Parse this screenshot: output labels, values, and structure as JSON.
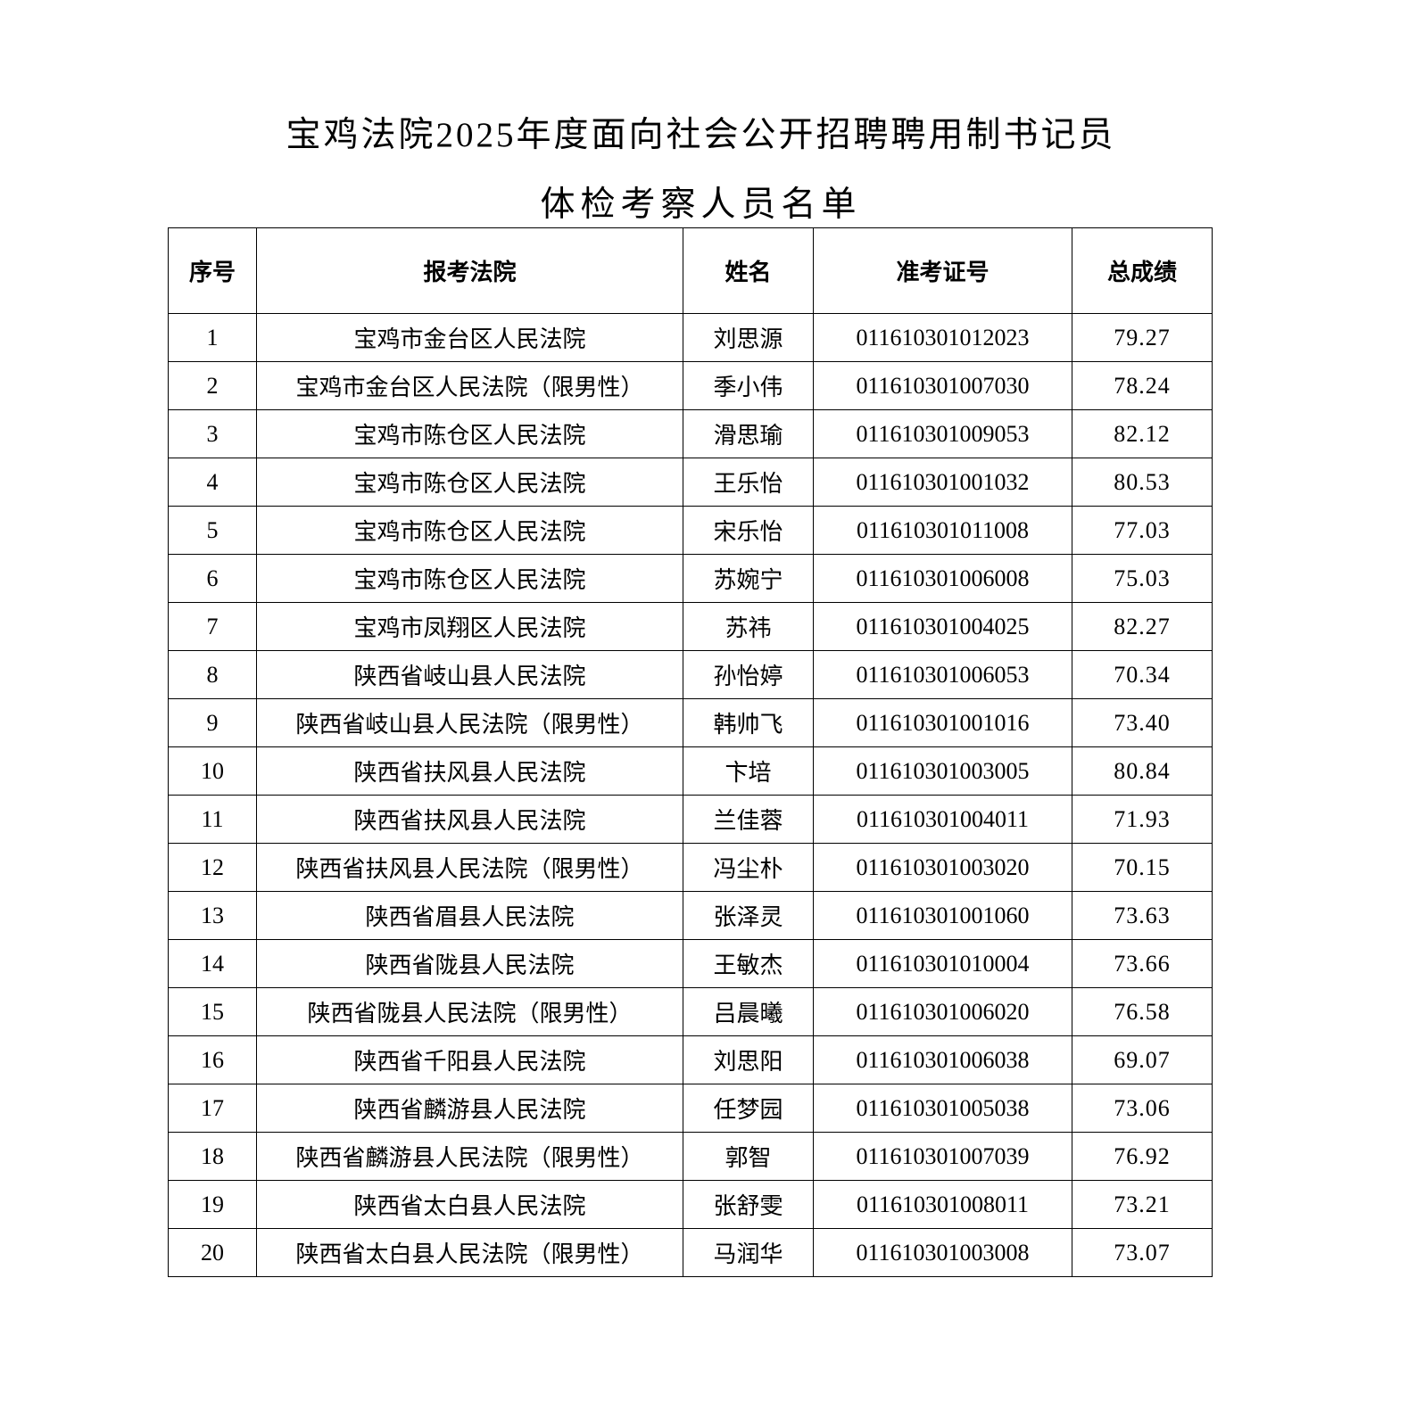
{
  "document": {
    "title_line1": "宝鸡法院2025年度面向社会公开招聘聘用制书记员",
    "title_line2": "体检考察人员名单"
  },
  "table": {
    "headers": [
      "序号",
      "报考法院",
      "姓名",
      "准考证号",
      "总成绩"
    ],
    "rows": [
      [
        "1",
        "宝鸡市金台区人民法院",
        "刘思源",
        "011610301012023",
        "79.27"
      ],
      [
        "2",
        "宝鸡市金台区人民法院（限男性）",
        "季小伟",
        "011610301007030",
        "78.24"
      ],
      [
        "3",
        "宝鸡市陈仓区人民法院",
        "滑思瑜",
        "011610301009053",
        "82.12"
      ],
      [
        "4",
        "宝鸡市陈仓区人民法院",
        "王乐怡",
        "011610301001032",
        "80.53"
      ],
      [
        "5",
        "宝鸡市陈仓区人民法院",
        "宋乐怡",
        "011610301011008",
        "77.03"
      ],
      [
        "6",
        "宝鸡市陈仓区人民法院",
        "苏婉宁",
        "011610301006008",
        "75.03"
      ],
      [
        "7",
        "宝鸡市凤翔区人民法院",
        "苏祎",
        "011610301004025",
        "82.27"
      ],
      [
        "8",
        "陕西省岐山县人民法院",
        "孙怡婷",
        "011610301006053",
        "70.34"
      ],
      [
        "9",
        "陕西省岐山县人民法院（限男性）",
        "韩帅飞",
        "011610301001016",
        "73.40"
      ],
      [
        "10",
        "陕西省扶风县人民法院",
        "卞培",
        "011610301003005",
        "80.84"
      ],
      [
        "11",
        "陕西省扶风县人民法院",
        "兰佳蓉",
        "011610301004011",
        "71.93"
      ],
      [
        "12",
        "陕西省扶风县人民法院（限男性）",
        "冯尘朴",
        "011610301003020",
        "70.15"
      ],
      [
        "13",
        "陕西省眉县人民法院",
        "张泽灵",
        "011610301001060",
        "73.63"
      ],
      [
        "14",
        "陕西省陇县人民法院",
        "王敏杰",
        "011610301010004",
        "73.66"
      ],
      [
        "15",
        "陕西省陇县人民法院（限男性）",
        "吕晨曦",
        "011610301006020",
        "76.58"
      ],
      [
        "16",
        "陕西省千阳县人民法院",
        "刘思阳",
        "011610301006038",
        "69.07"
      ],
      [
        "17",
        "陕西省麟游县人民法院",
        "任梦园",
        "011610301005038",
        "73.06"
      ],
      [
        "18",
        "陕西省麟游县人民法院（限男性）",
        "郭智",
        "011610301007039",
        "76.92"
      ],
      [
        "19",
        "陕西省太白县人民法院",
        "张舒雯",
        "011610301008011",
        "73.21"
      ],
      [
        "20",
        "陕西省太白县人民法院（限男性）",
        "马润华",
        "011610301003008",
        "73.07"
      ]
    ]
  }
}
